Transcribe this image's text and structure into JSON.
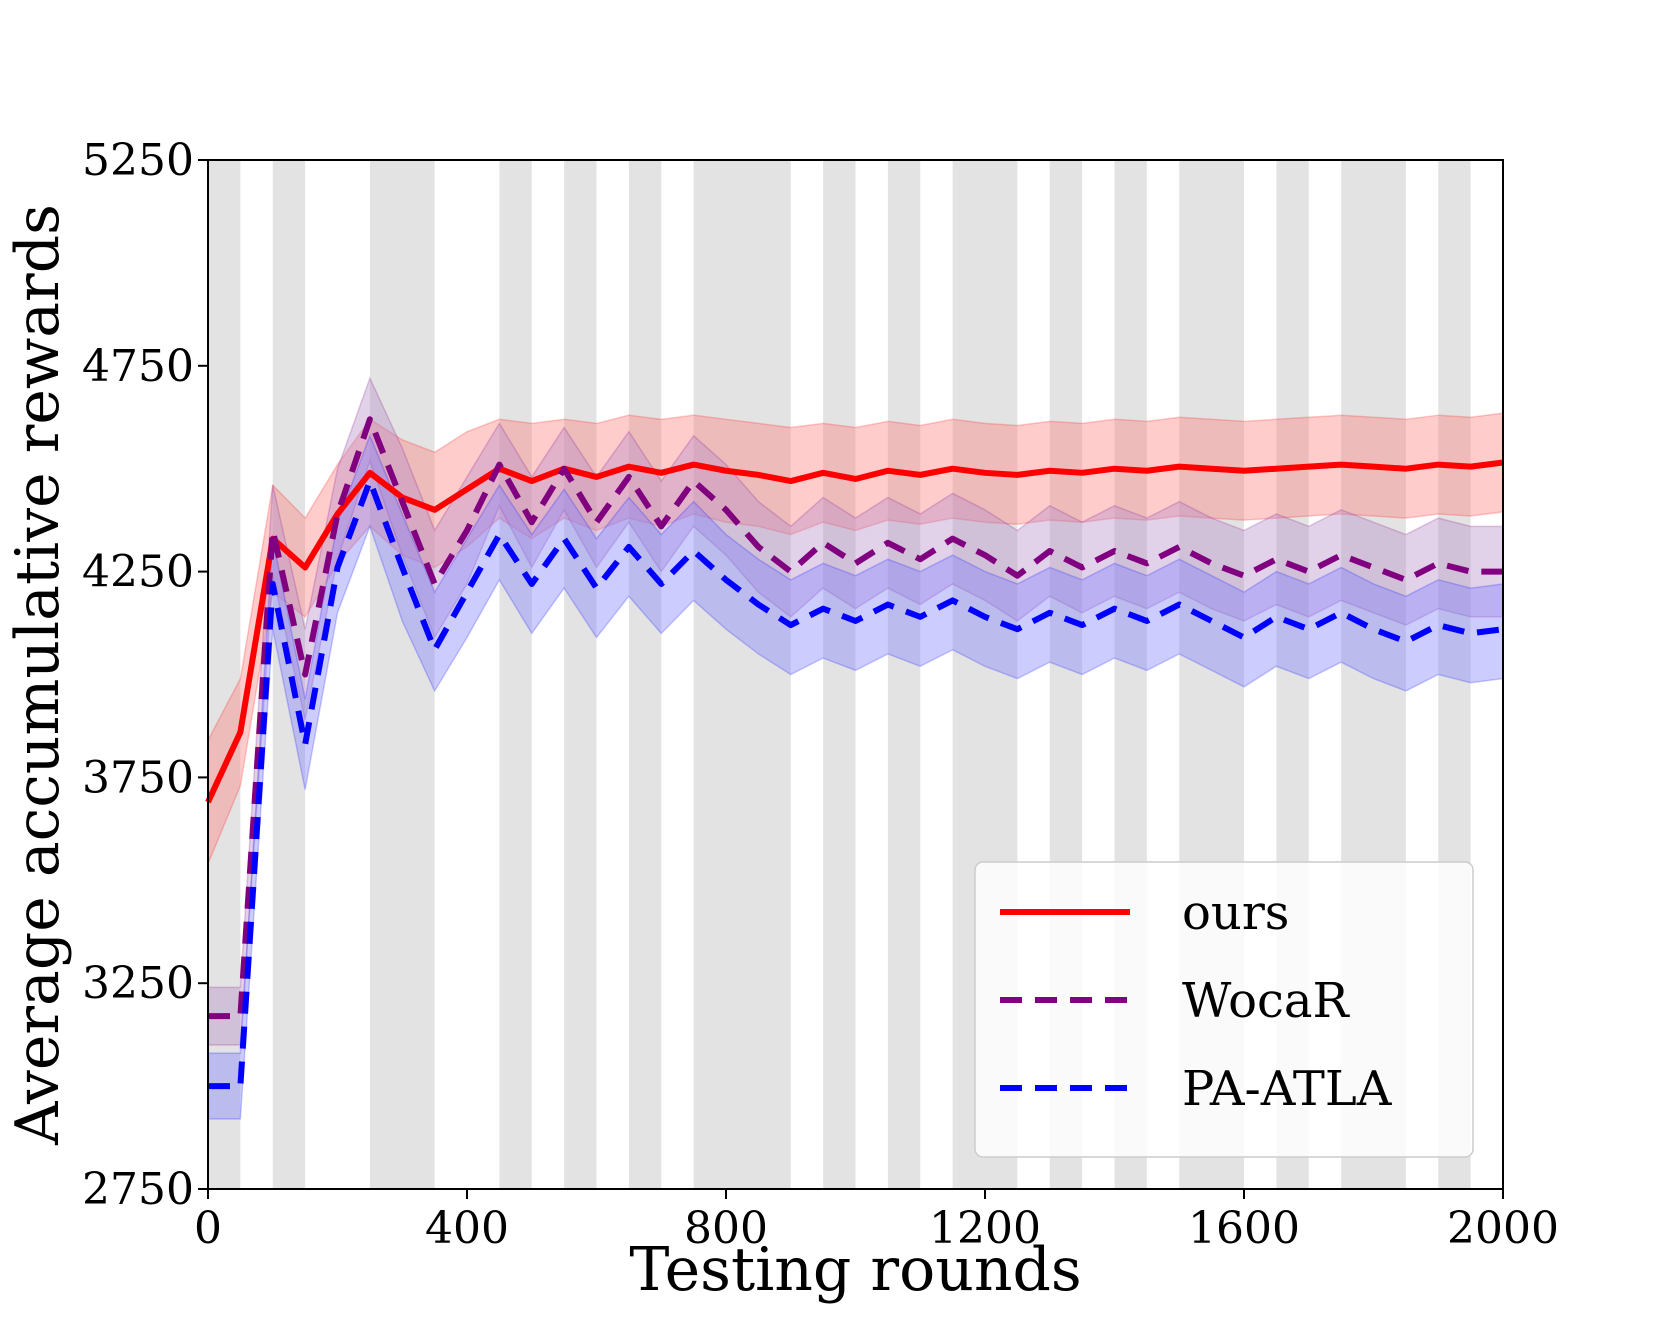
{
  "chart_data": {
    "type": "line",
    "title": "",
    "xlabel": "Testing rounds",
    "ylabel": "Average accumulative rewards",
    "xlim": [
      0,
      2000
    ],
    "ylim": [
      2750,
      5250
    ],
    "xticks": [
      0,
      400,
      800,
      1200,
      1600,
      2000
    ],
    "yticks": [
      2750,
      3250,
      3750,
      4250,
      4750,
      5250
    ],
    "xtick_labels": [
      "0",
      "400",
      "800",
      "1200",
      "1600",
      "2000"
    ],
    "ytick_labels": [
      "2750",
      "3250",
      "3750",
      "4250",
      "4750",
      "5250"
    ],
    "shaded_intervals": [
      [
        0,
        50
      ],
      [
        100,
        150
      ],
      [
        250,
        350
      ],
      [
        450,
        500
      ],
      [
        550,
        600
      ],
      [
        650,
        700
      ],
      [
        750,
        900
      ],
      [
        950,
        1000
      ],
      [
        1050,
        1100
      ],
      [
        1150,
        1250
      ],
      [
        1300,
        1350
      ],
      [
        1400,
        1450
      ],
      [
        1500,
        1600
      ],
      [
        1650,
        1700
      ],
      [
        1750,
        1850
      ],
      [
        1900,
        1950
      ]
    ],
    "shade_color": "#d9d9d9",
    "legend_position": "lower-right",
    "x": [
      0,
      50,
      100,
      150,
      200,
      250,
      300,
      350,
      400,
      450,
      500,
      550,
      600,
      650,
      700,
      750,
      800,
      850,
      900,
      950,
      1000,
      1050,
      1100,
      1150,
      1200,
      1250,
      1300,
      1350,
      1400,
      1450,
      1500,
      1550,
      1600,
      1650,
      1700,
      1750,
      1800,
      1850,
      1900,
      1950,
      2000
    ],
    "series": [
      {
        "name": "ours",
        "color": "#ff0000",
        "style": "solid",
        "band_color": "#ff7f7f",
        "values": [
          3690,
          3860,
          4330,
          4260,
          4390,
          4490,
          4430,
          4400,
          4450,
          4500,
          4470,
          4500,
          4480,
          4505,
          4490,
          4510,
          4495,
          4485,
          4470,
          4490,
          4475,
          4495,
          4485,
          4500,
          4490,
          4485,
          4495,
          4490,
          4500,
          4495,
          4505,
          4500,
          4495,
          4500,
          4505,
          4510,
          4505,
          4500,
          4510,
          4505,
          4515
        ],
        "upper": [
          3840,
          3990,
          4460,
          4380,
          4510,
          4620,
          4570,
          4540,
          4590,
          4620,
          4610,
          4620,
          4610,
          4630,
          4620,
          4630,
          4620,
          4610,
          4600,
          4610,
          4600,
          4615,
          4605,
          4620,
          4610,
          4605,
          4615,
          4610,
          4620,
          4615,
          4625,
          4620,
          4615,
          4620,
          4625,
          4630,
          4625,
          4620,
          4630,
          4625,
          4635
        ],
        "lower": [
          3540,
          3730,
          4200,
          4140,
          4270,
          4360,
          4290,
          4260,
          4310,
          4380,
          4330,
          4380,
          4350,
          4380,
          4360,
          4390,
          4370,
          4360,
          4340,
          4370,
          4350,
          4375,
          4365,
          4380,
          4370,
          4365,
          4375,
          4370,
          4380,
          4375,
          4385,
          4380,
          4375,
          4380,
          4385,
          4390,
          4385,
          4380,
          4390,
          4385,
          4395
        ]
      },
      {
        "name": "WocaR",
        "color": "#800080",
        "style": "dashed",
        "band_color": "#b48cc8",
        "values": [
          3170,
          3170,
          4350,
          4000,
          4390,
          4620,
          4420,
          4220,
          4350,
          4510,
          4370,
          4500,
          4370,
          4480,
          4360,
          4470,
          4400,
          4310,
          4250,
          4320,
          4270,
          4320,
          4280,
          4330,
          4290,
          4240,
          4300,
          4260,
          4300,
          4270,
          4310,
          4270,
          4240,
          4280,
          4250,
          4290,
          4260,
          4230,
          4270,
          4250,
          4250
        ],
        "upper": [
          3240,
          3240,
          4460,
          4110,
          4500,
          4720,
          4550,
          4350,
          4480,
          4610,
          4480,
          4600,
          4480,
          4590,
          4470,
          4580,
          4510,
          4420,
          4360,
          4430,
          4380,
          4430,
          4390,
          4440,
          4400,
          4350,
          4410,
          4370,
          4410,
          4380,
          4420,
          4380,
          4350,
          4390,
          4360,
          4400,
          4370,
          4340,
          4380,
          4360,
          4360
        ],
        "lower": [
          3100,
          3100,
          4240,
          3890,
          4280,
          4520,
          4290,
          4090,
          4220,
          4410,
          4260,
          4400,
          4260,
          4370,
          4250,
          4360,
          4290,
          4200,
          4140,
          4210,
          4160,
          4210,
          4170,
          4220,
          4180,
          4130,
          4190,
          4150,
          4190,
          4160,
          4200,
          4160,
          4130,
          4170,
          4140,
          4180,
          4150,
          4120,
          4160,
          4140,
          4140
        ]
      },
      {
        "name": "PA-ATLA",
        "color": "#0000ff",
        "style": "dashed",
        "band_color": "#7f7fff",
        "values": [
          3000,
          3000,
          4220,
          3830,
          4260,
          4470,
          4260,
          4060,
          4200,
          4340,
          4220,
          4330,
          4210,
          4310,
          4220,
          4300,
          4230,
          4170,
          4120,
          4160,
          4130,
          4170,
          4140,
          4180,
          4140,
          4110,
          4150,
          4120,
          4160,
          4130,
          4170,
          4130,
          4090,
          4140,
          4110,
          4150,
          4110,
          4080,
          4120,
          4100,
          4110
        ],
        "upper": [
          3080,
          3080,
          4330,
          3940,
          4370,
          4580,
          4390,
          4200,
          4330,
          4460,
          4340,
          4450,
          4330,
          4430,
          4340,
          4420,
          4340,
          4280,
          4230,
          4270,
          4240,
          4280,
          4250,
          4290,
          4250,
          4220,
          4260,
          4230,
          4270,
          4240,
          4280,
          4240,
          4200,
          4250,
          4220,
          4260,
          4220,
          4190,
          4230,
          4210,
          4220
        ],
        "lower": [
          2920,
          2920,
          4110,
          3720,
          4150,
          4360,
          4130,
          3960,
          4090,
          4230,
          4100,
          4210,
          4090,
          4190,
          4100,
          4180,
          4110,
          4050,
          4000,
          4040,
          4010,
          4050,
          4020,
          4060,
          4020,
          3990,
          4030,
          4000,
          4040,
          4010,
          4050,
          4010,
          3970,
          4020,
          3990,
          4030,
          3990,
          3960,
          4000,
          3980,
          3990
        ]
      }
    ]
  }
}
